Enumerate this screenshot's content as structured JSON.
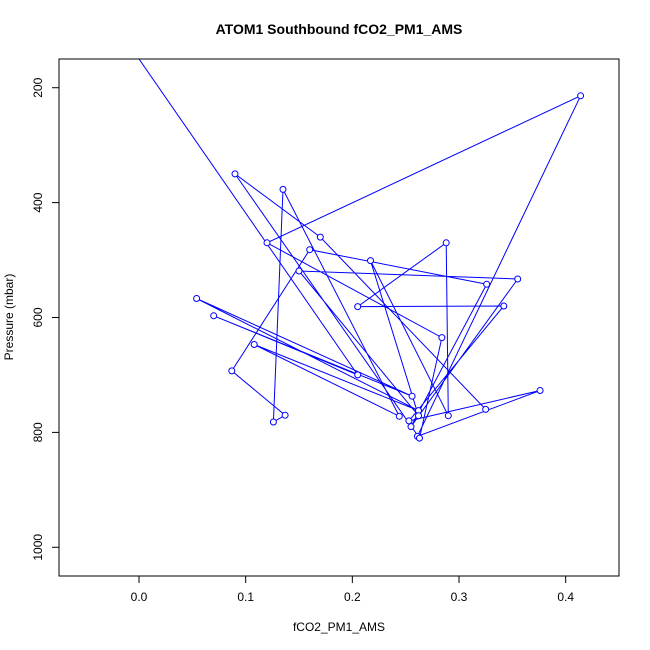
{
  "chart_data": {
    "type": "line",
    "title": "ATOM1 Southbound fCO2_PM1_AMS",
    "xlabel": "fCO2_PM1_AMS",
    "ylabel": "Pressure (mbar)",
    "xlim": [
      -0.075,
      0.45
    ],
    "ylim": [
      1050,
      150
    ],
    "y_inverted": true,
    "x_ticks": [
      0.0,
      0.1,
      0.2,
      0.3,
      0.4
    ],
    "x_tick_labels": [
      "0.0",
      "0.1",
      "0.2",
      "0.3",
      "0.4"
    ],
    "y_ticks": [
      200,
      400,
      600,
      800,
      1000
    ],
    "y_tick_labels": [
      "200",
      "400",
      "600",
      "800",
      "1000"
    ],
    "grid": false,
    "legend": "none",
    "series": [
      {
        "color": "#0000ff",
        "x": [
          0.0,
          0.205,
          0.07,
          0.256,
          0.054,
          0.262,
          0.108,
          0.244,
          0.135,
          0.126,
          0.137,
          0.087,
          0.16,
          0.326,
          0.255,
          0.355,
          0.15,
          0.262,
          0.217,
          0.29,
          0.288,
          0.205,
          0.342,
          0.253,
          0.376,
          0.261,
          0.414,
          0.12,
          0.284,
          0.263,
          0.09,
          0.17,
          0.325
        ],
        "y": [
          150,
          700,
          597,
          737,
          567,
          762,
          647,
          772,
          377,
          782,
          770,
          693,
          482,
          542,
          790,
          533,
          519,
          771,
          501,
          771,
          470,
          581,
          580,
          780,
          727,
          807,
          214,
          470,
          635,
          810,
          350,
          460,
          760
        ]
      }
    ]
  }
}
